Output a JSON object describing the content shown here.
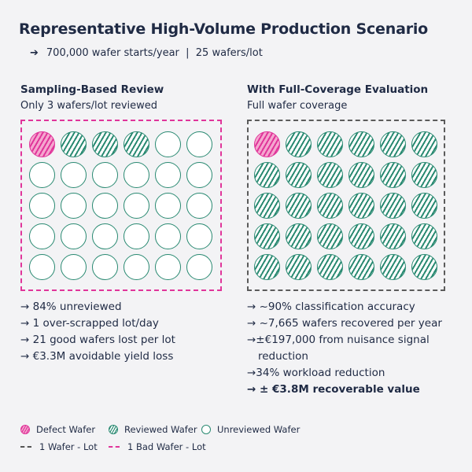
{
  "header": {
    "title": "Representative High-Volume Production Scenario",
    "arrow": "➔",
    "subtitle": "700,000 wafer starts/year  |  25 wafers/lot"
  },
  "left_panel": {
    "heading": "Sampling-Based Review",
    "subheading": "Only 3 wafers/lot reviewed",
    "wafer_rows": [
      [
        "defect",
        "reviewed",
        "reviewed",
        "reviewed",
        "unreviewed",
        "unreviewed"
      ],
      [
        "unreviewed",
        "unreviewed",
        "unreviewed",
        "unreviewed",
        "unreviewed",
        "unreviewed"
      ],
      [
        "unreviewed",
        "unreviewed",
        "unreviewed",
        "unreviewed",
        "unreviewed",
        "unreviewed"
      ],
      [
        "unreviewed",
        "unreviewed",
        "unreviewed",
        "unreviewed",
        "unreviewed",
        "unreviewed"
      ],
      [
        "unreviewed",
        "unreviewed",
        "unreviewed",
        "unreviewed",
        "unreviewed",
        "unreviewed"
      ]
    ],
    "bullets": [
      {
        "text": "→ 84% unreviewed"
      },
      {
        "text": "→ 1 over-scrapped lot/day"
      },
      {
        "text": "→ 21 good wafers lost per lot"
      },
      {
        "text": "→ €3.3M avoidable yield loss"
      }
    ]
  },
  "right_panel": {
    "heading": "With Full-Coverage Evaluation",
    "subheading": "Full wafer coverage",
    "wafer_rows": [
      [
        "defect",
        "reviewed",
        "reviewed",
        "reviewed",
        "reviewed",
        "reviewed"
      ],
      [
        "reviewed",
        "reviewed",
        "reviewed",
        "reviewed",
        "reviewed",
        "reviewed"
      ],
      [
        "reviewed",
        "reviewed",
        "reviewed",
        "reviewed",
        "reviewed",
        "reviewed"
      ],
      [
        "reviewed",
        "reviewed",
        "reviewed",
        "reviewed",
        "reviewed",
        "reviewed"
      ],
      [
        "reviewed",
        "reviewed",
        "reviewed",
        "reviewed",
        "reviewed",
        "reviewed"
      ]
    ],
    "bullets": [
      {
        "text": "→ ~90% classification accuracy"
      },
      {
        "text": "→ ~7,665 wafers recovered per year"
      },
      {
        "text": "→±€197,000 from nuisance signal",
        "cont": "reduction"
      },
      {
        "text": "→34% workload reduction"
      },
      {
        "text": "→ ± €3.8M recoverable value",
        "bold": true
      }
    ]
  },
  "legend": {
    "defect": "Defect Wafer",
    "reviewed": "Reviewed Wafer",
    "unreviewed": "Unreviewed Wafer",
    "wafer_lot": "1 Wafer - Lot",
    "bad_wafer_lot": "1 Bad Wafer - Lot"
  },
  "colors": {
    "defect": "#e0359a",
    "reviewed": "#2a8a72",
    "text": "#1f2a44",
    "background": "#f3f3f5"
  }
}
